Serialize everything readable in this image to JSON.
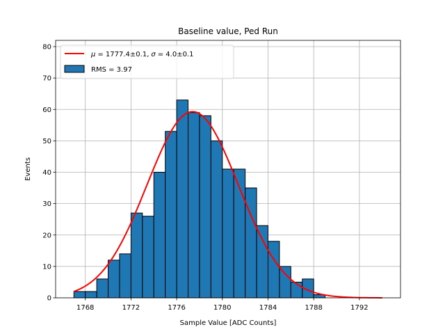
{
  "chart_data": {
    "type": "bar",
    "title": "Baseline value, Ped Run",
    "xlabel": "Sample Value [ADC Counts]",
    "ylabel": "Events",
    "xlim": [
      1765.4,
      1795.6
    ],
    "ylim": [
      0,
      82
    ],
    "xticks": [
      1768,
      1772,
      1776,
      1780,
      1784,
      1788,
      1792
    ],
    "yticks": [
      0,
      10,
      20,
      30,
      40,
      50,
      60,
      70,
      80
    ],
    "grid": true,
    "legend_position": "top-left",
    "bin_width": 1,
    "bins": {
      "left_edges": [
        1767,
        1768,
        1769,
        1770,
        1771,
        1772,
        1773,
        1774,
        1775,
        1776,
        1777,
        1778,
        1779,
        1780,
        1781,
        1782,
        1783,
        1784,
        1785,
        1786,
        1787,
        1788
      ],
      "counts": [
        2,
        2,
        6,
        12,
        14,
        27,
        26,
        40,
        53,
        63,
        59,
        58,
        50,
        41,
        41,
        35,
        23,
        18,
        10,
        5,
        6,
        1
      ]
    },
    "fit": {
      "mu": 1777.4,
      "sigma": 4.0,
      "amplitude": 59.3,
      "x_range": [
        1767,
        1794
      ]
    },
    "series": [
      {
        "name": "RMS = 3.97",
        "kind": "histogram",
        "color": "#1f77b4"
      },
      {
        "name": "μ = 1777.4±0.1, σ = 4.0±0.1",
        "kind": "gaussian-fit",
        "color": "#ff0000"
      }
    ],
    "legend": {
      "fit_label": "μ = 1777.4±0.1, σ = 4.0±0.1",
      "fit_mu_text": "= 1777.4±0.1,",
      "fit_sigma_text": "= 4.0±0.1",
      "hist_label": "RMS = 3.97"
    }
  }
}
